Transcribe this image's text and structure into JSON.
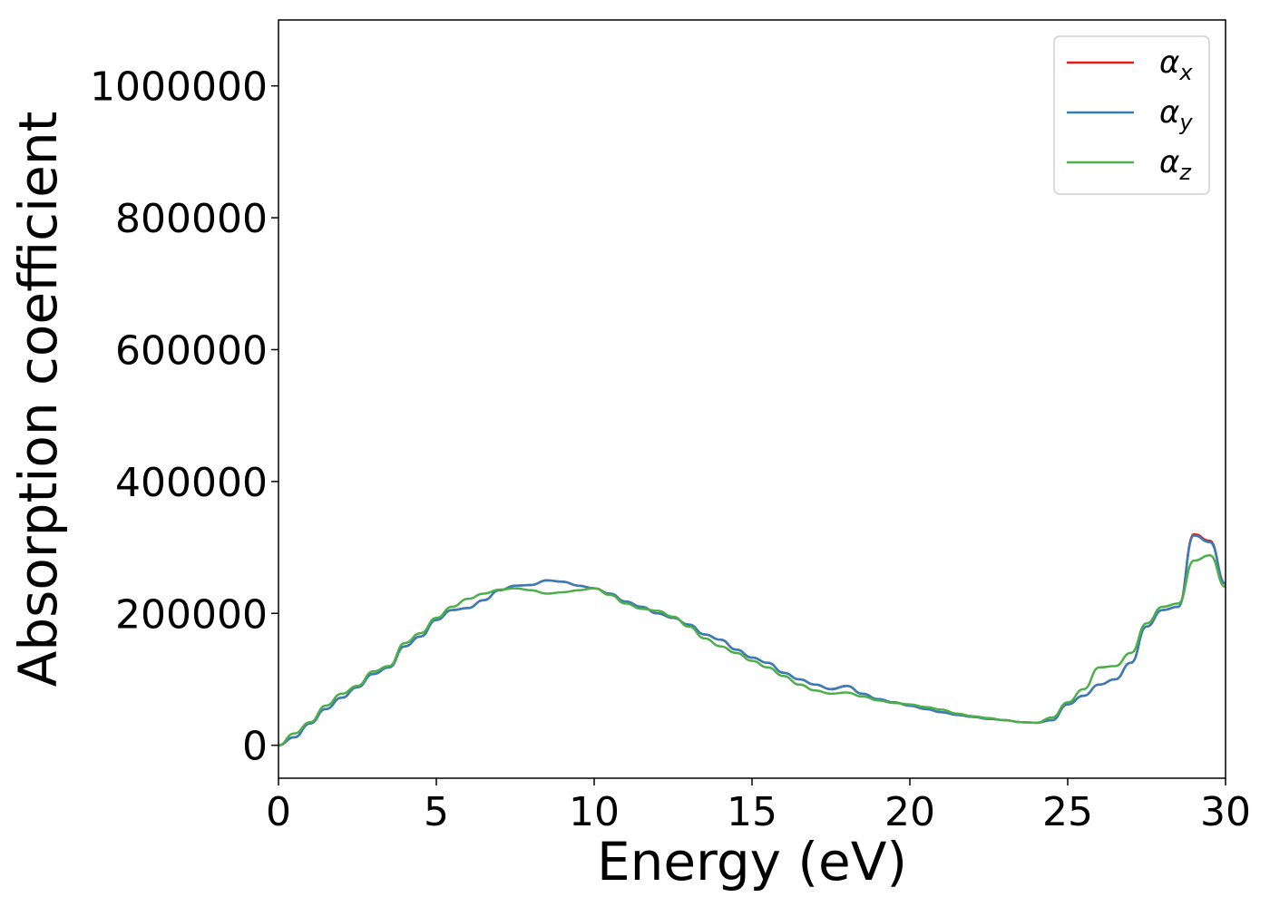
{
  "chart_data": {
    "type": "line",
    "title": "",
    "xlabel": "Energy (eV)",
    "ylabel": "Absorption coefficient",
    "xlim": [
      0,
      30
    ],
    "ylim": [
      -50000,
      1100000
    ],
    "xticks": [
      0,
      5,
      10,
      15,
      20,
      25,
      30
    ],
    "xtick_labels": [
      "0",
      "5",
      "10",
      "15",
      "20",
      "25",
      "30"
    ],
    "yticks": [
      0,
      200000,
      400000,
      600000,
      800000,
      1000000
    ],
    "ytick_labels": [
      "0",
      "200000",
      "400000",
      "600000",
      "800000",
      "1000000"
    ],
    "grid": false,
    "legend_position": "top-right",
    "x": [
      0,
      0.5,
      1,
      1.5,
      2,
      2.5,
      3,
      3.5,
      4,
      4.5,
      5,
      5.5,
      6,
      6.5,
      7,
      7.5,
      8,
      8.5,
      9,
      9.5,
      10,
      10.5,
      11,
      11.5,
      12,
      12.5,
      13,
      13.5,
      14,
      14.5,
      15,
      15.5,
      16,
      16.5,
      17,
      17.5,
      18,
      18.5,
      19,
      19.5,
      20,
      20.5,
      21,
      21.5,
      22,
      22.5,
      23,
      23.5,
      24,
      24.5,
      25,
      25.5,
      26,
      26.5,
      27,
      27.5,
      28,
      28.5,
      29,
      29.5,
      30
    ],
    "series": [
      {
        "name": "α",
        "subscript": "x",
        "color": "#e41a1c",
        "values": [
          0,
          12000,
          33000,
          55000,
          72000,
          88000,
          108000,
          118000,
          150000,
          165000,
          190000,
          205000,
          208000,
          220000,
          235000,
          242000,
          243000,
          250000,
          248000,
          242000,
          238000,
          230000,
          218000,
          210000,
          200000,
          193000,
          183000,
          168000,
          160000,
          145000,
          133000,
          125000,
          110000,
          100000,
          92000,
          85000,
          90000,
          78000,
          70000,
          65000,
          60000,
          55000,
          50000,
          46000,
          43000,
          40000,
          38000,
          35000,
          34000,
          38000,
          62000,
          75000,
          92000,
          100000,
          125000,
          180000,
          205000,
          210000,
          320000,
          310000,
          245000
        ]
      },
      {
        "name": "α",
        "subscript": "y",
        "color": "#377eb8",
        "values": [
          0,
          12000,
          33000,
          55000,
          72000,
          88000,
          108000,
          118000,
          150000,
          165000,
          190000,
          205000,
          208000,
          220000,
          235000,
          242000,
          243000,
          250000,
          248000,
          242000,
          238000,
          230000,
          218000,
          210000,
          200000,
          193000,
          183000,
          168000,
          160000,
          145000,
          133000,
          125000,
          110000,
          100000,
          92000,
          85000,
          90000,
          78000,
          70000,
          65000,
          60000,
          55000,
          50000,
          46000,
          43000,
          40000,
          38000,
          35000,
          34000,
          38000,
          62000,
          75000,
          92000,
          100000,
          125000,
          180000,
          205000,
          210000,
          318000,
          308000,
          245000
        ]
      },
      {
        "name": "α",
        "subscript": "z",
        "color": "#4daf4a",
        "values": [
          0,
          18000,
          35000,
          60000,
          78000,
          90000,
          112000,
          120000,
          155000,
          170000,
          193000,
          210000,
          222000,
          230000,
          236000,
          238000,
          235000,
          230000,
          232000,
          235000,
          238000,
          228000,
          215000,
          207000,
          204000,
          195000,
          180000,
          162000,
          150000,
          140000,
          128000,
          118000,
          105000,
          92000,
          83000,
          78000,
          80000,
          74000,
          68000,
          64000,
          62000,
          58000,
          54000,
          48000,
          44000,
          41000,
          38000,
          35000,
          34000,
          42000,
          65000,
          85000,
          118000,
          120000,
          140000,
          185000,
          210000,
          215000,
          280000,
          288000,
          240000
        ]
      }
    ]
  }
}
